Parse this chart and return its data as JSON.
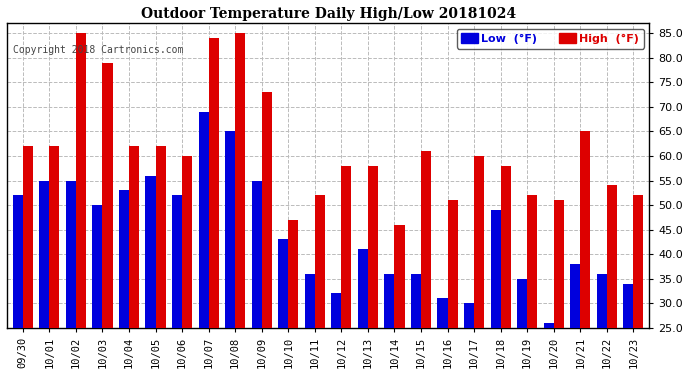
{
  "title": "Outdoor Temperature Daily High/Low 20181024",
  "copyright": "Copyright 2018 Cartronics.com",
  "legend_low": "Low  (°F)",
  "legend_high": "High  (°F)",
  "low_color": "#0000dd",
  "high_color": "#dd0000",
  "background_color": "#ffffff",
  "plot_background": "#ffffff",
  "ymin": 25.0,
  "ymax": 87.0,
  "yticks": [
    25.0,
    30.0,
    35.0,
    40.0,
    45.0,
    50.0,
    55.0,
    60.0,
    65.0,
    70.0,
    75.0,
    80.0,
    85.0
  ],
  "categories": [
    "09/30",
    "10/01",
    "10/02",
    "10/03",
    "10/04",
    "10/05",
    "10/06",
    "10/07",
    "10/08",
    "10/09",
    "10/10",
    "10/11",
    "10/12",
    "10/13",
    "10/14",
    "10/15",
    "10/16",
    "10/17",
    "10/18",
    "10/19",
    "10/20",
    "10/21",
    "10/22",
    "10/23"
  ],
  "highs": [
    62,
    62,
    85,
    79,
    62,
    62,
    60,
    84,
    85,
    73,
    47,
    52,
    58,
    58,
    46,
    61,
    51,
    60,
    58,
    52,
    51,
    65,
    54,
    52
  ],
  "lows": [
    52,
    55,
    55,
    50,
    53,
    56,
    52,
    69,
    65,
    55,
    43,
    36,
    32,
    41,
    36,
    36,
    31,
    30,
    49,
    35,
    26,
    38,
    36,
    34
  ]
}
